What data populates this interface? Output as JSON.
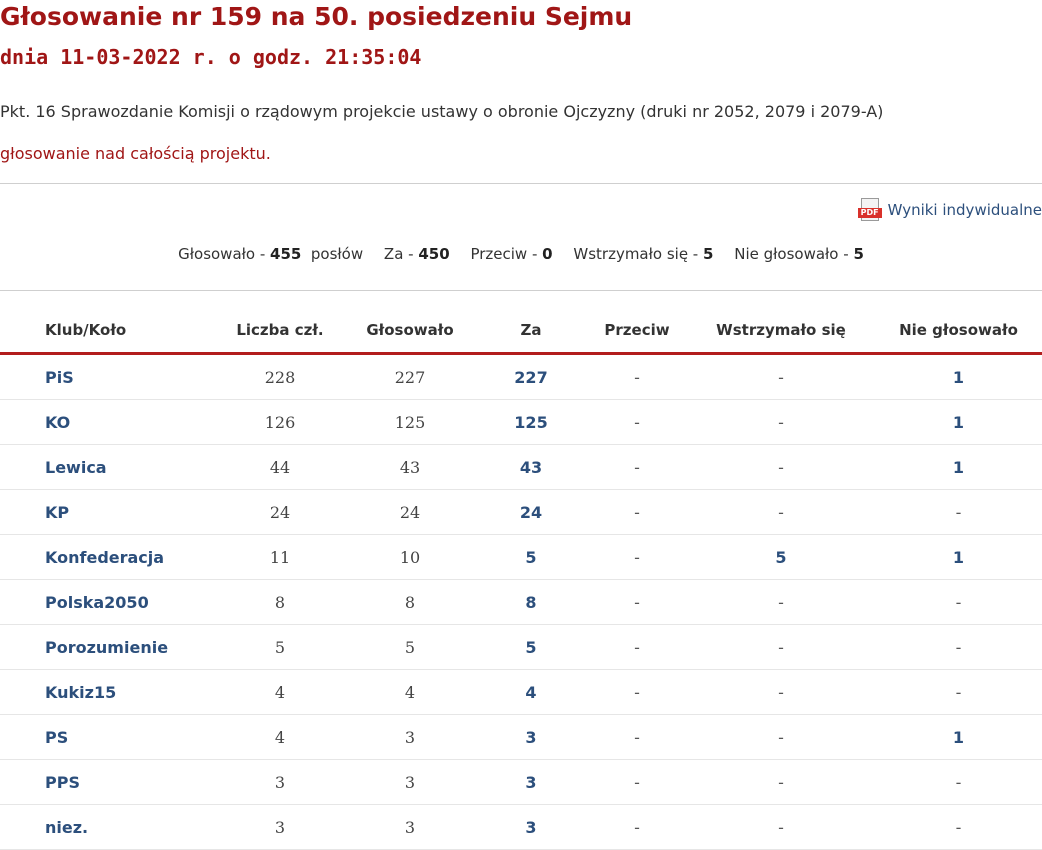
{
  "header": {
    "title": "Głosowanie nr 159 na 50. posiedzeniu Sejmu",
    "subtitle": "dnia 11-03-2022 r. o godz. 21:35:04",
    "agenda": "Pkt. 16 Sprawozdanie Komisji o rządowym projekcie ustawy o obronie Ojczyzny (druki nr 2052, 2079 i 2079-A)",
    "topic": "głosowanie nad całością projektu."
  },
  "pdf_link": {
    "label": "Wyniki indywidualne",
    "icon": "pdf-icon",
    "icon_text": "PDF"
  },
  "summary": {
    "voted_label": "Głosowało -",
    "voted": "455",
    "voted_unit": "posłów",
    "for_label": "Za -",
    "for": "450",
    "against_label": "Przeciw -",
    "against": "0",
    "abstained_label": "Wstrzymało się -",
    "abstained": "5",
    "not_voted_label": "Nie głosowało -",
    "not_voted": "5"
  },
  "table": {
    "headers": [
      "Klub/Koło",
      "Liczba czł.",
      "Głosowało",
      "Za",
      "Przeciw",
      "Wstrzymało się",
      "Nie głosowało"
    ],
    "rows": [
      [
        "PiS",
        "228",
        "227",
        "227",
        "-",
        "-",
        "1"
      ],
      [
        "KO",
        "126",
        "125",
        "125",
        "-",
        "-",
        "1"
      ],
      [
        "Lewica",
        "44",
        "43",
        "43",
        "-",
        "-",
        "1"
      ],
      [
        "KP",
        "24",
        "24",
        "24",
        "-",
        "-",
        "-"
      ],
      [
        "Konfederacja",
        "11",
        "10",
        "5",
        "-",
        "5",
        "1"
      ],
      [
        "Polska2050",
        "8",
        "8",
        "8",
        "-",
        "-",
        "-"
      ],
      [
        "Porozumienie",
        "5",
        "5",
        "5",
        "-",
        "-",
        "-"
      ],
      [
        "Kukiz15",
        "4",
        "4",
        "4",
        "-",
        "-",
        "-"
      ],
      [
        "PS",
        "4",
        "3",
        "3",
        "-",
        "-",
        "1"
      ],
      [
        "PPS",
        "3",
        "3",
        "3",
        "-",
        "-",
        "-"
      ],
      [
        "niez.",
        "3",
        "3",
        "3",
        "-",
        "-",
        "-"
      ]
    ]
  },
  "colors": {
    "title": "#a01616",
    "link": "#2c4f7c",
    "header_rule": "#b21d1d"
  }
}
